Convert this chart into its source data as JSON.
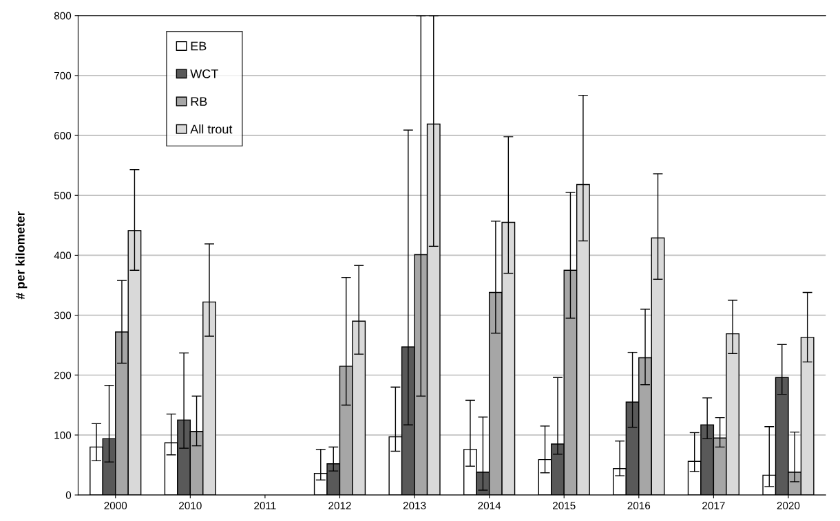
{
  "chart_data": {
    "type": "bar",
    "ylabel": "# per kilometer",
    "categories": [
      "2000",
      "2010",
      "2011",
      "2012",
      "2013",
      "2014",
      "2015",
      "2016",
      "2017",
      "2020"
    ],
    "series": [
      {
        "name": "EB",
        "color": "#ffffff",
        "values": [
          80,
          87,
          null,
          36,
          97,
          76,
          59,
          44,
          56,
          33
        ],
        "errors": [
          [
            57,
            119
          ],
          [
            67,
            135
          ],
          null,
          [
            25,
            76
          ],
          [
            73,
            180
          ],
          [
            48,
            158
          ],
          [
            37,
            115
          ],
          [
            32,
            90
          ],
          [
            39,
            104
          ],
          [
            14,
            114
          ]
        ]
      },
      {
        "name": "WCT",
        "color": "#595959",
        "values": [
          94,
          125,
          null,
          52,
          247,
          38,
          85,
          155,
          117,
          196
        ],
        "errors": [
          [
            55,
            183
          ],
          [
            78,
            237
          ],
          null,
          [
            40,
            80
          ],
          [
            117,
            609
          ],
          [
            8,
            130
          ],
          [
            68,
            196
          ],
          [
            113,
            238
          ],
          [
            94,
            162
          ],
          [
            168,
            251
          ]
        ]
      },
      {
        "name": "RB",
        "color": "#a6a6a6",
        "values": [
          272,
          106,
          null,
          215,
          401,
          338,
          375,
          229,
          95,
          38
        ],
        "errors": [
          [
            220,
            358
          ],
          [
            82,
            165
          ],
          null,
          [
            150,
            363
          ],
          [
            165,
            800
          ],
          [
            270,
            457
          ],
          [
            295,
            505
          ],
          [
            184,
            310
          ],
          [
            80,
            129
          ],
          [
            22,
            105
          ]
        ]
      },
      {
        "name": "All trout",
        "color": "#d9d9d9",
        "values": [
          441,
          322,
          null,
          290,
          619,
          455,
          518,
          429,
          269,
          263
        ],
        "errors": [
          [
            375,
            543
          ],
          [
            265,
            419
          ],
          null,
          [
            235,
            383
          ],
          [
            415,
            800
          ],
          [
            370,
            598
          ],
          [
            424,
            667
          ],
          [
            360,
            536
          ],
          [
            236,
            325
          ],
          [
            222,
            338
          ]
        ]
      }
    ],
    "ylim": [
      0,
      800
    ],
    "yticks": [
      0,
      100,
      200,
      300,
      400,
      500,
      600,
      700,
      800
    ],
    "grid": "y",
    "legend": "top left"
  }
}
